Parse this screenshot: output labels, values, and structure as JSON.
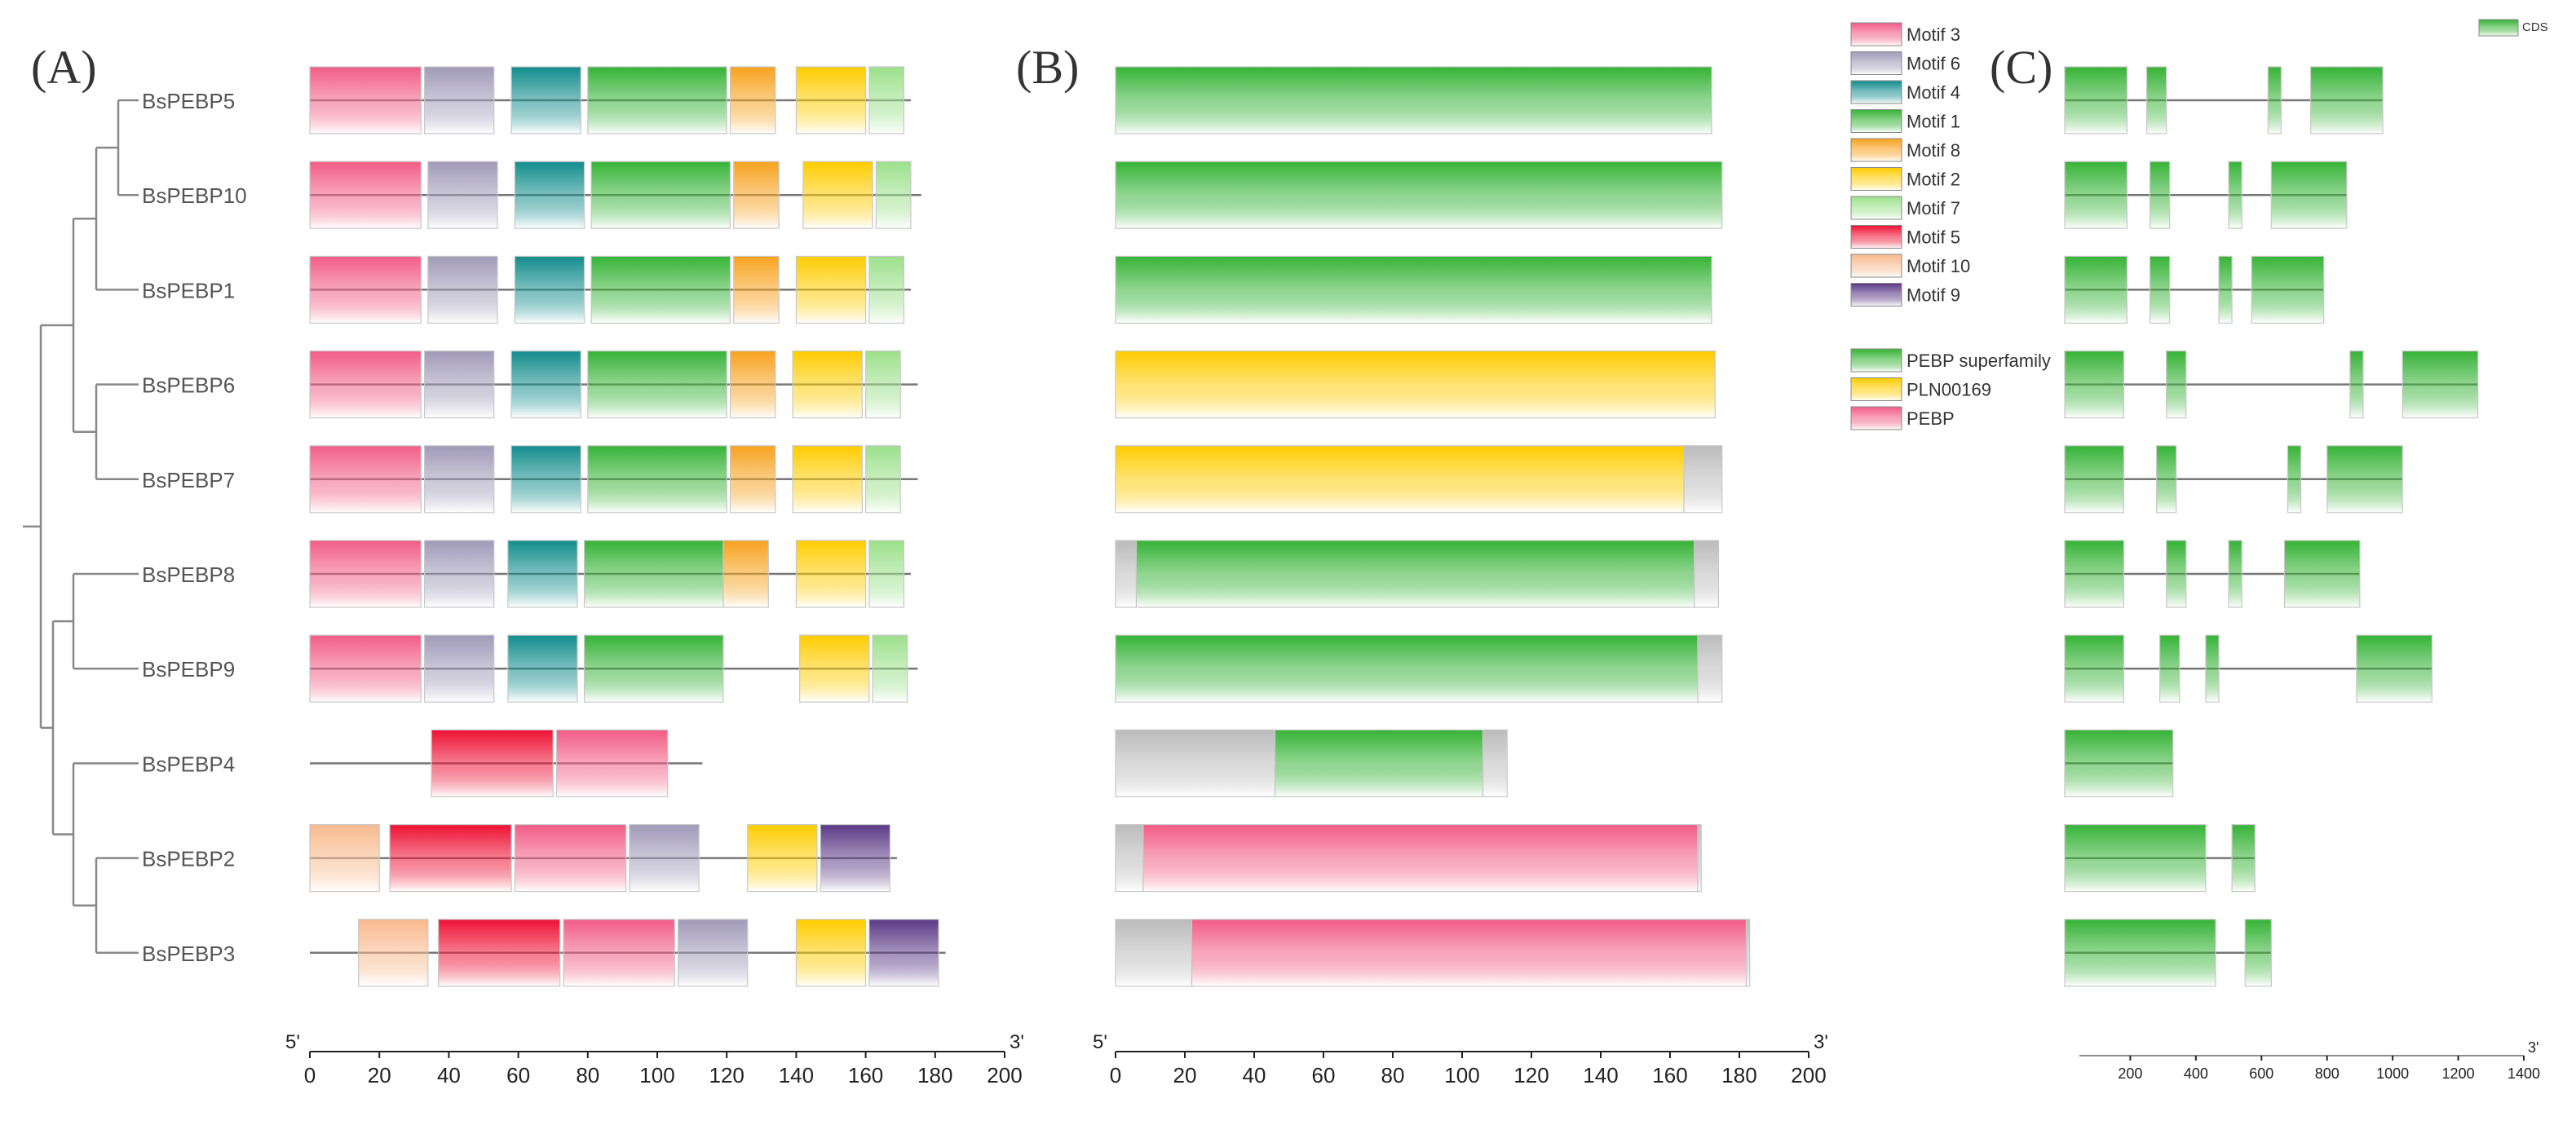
{
  "panels": {
    "a": "(A)",
    "b": "(B)",
    "c": "(C)"
  },
  "colors": {
    "Motif 3": "#f25c86",
    "Motif 6": "#a09ab8",
    "Motif 4": "#128c8c",
    "Motif 1": "#36b336",
    "Motif 8": "#f7a21e",
    "Motif 2": "#ffcc00",
    "Motif 7": "#9be08a",
    "Motif 5": "#ee1133",
    "Motif 10": "#f8b98c",
    "Motif 9": "#5b3a86",
    "PEBP superfamily": "#36b336",
    "PLN00169": "#ffcc00",
    "PEBP": "#f25c86",
    "CDS": "#36b336",
    "none": "#bbbbbb"
  },
  "legend_motifs": [
    "Motif 3",
    "Motif 6",
    "Motif 4",
    "Motif 1",
    "Motif 8",
    "Motif 2",
    "Motif 7",
    "Motif 5",
    "Motif 10",
    "Motif 9"
  ],
  "legend_domains": [
    "PEBP superfamily",
    "PLN00169",
    "PEBP"
  ],
  "legend_cds": "CDS",
  "axis_a": {
    "start_label": "5'",
    "end_label": "3'",
    "min": 0,
    "max": 200,
    "ticks": [
      0,
      20,
      40,
      60,
      80,
      100,
      120,
      140,
      160,
      180,
      200
    ]
  },
  "axis_b": {
    "start_label": "5'",
    "end_label": "3'",
    "min": 0,
    "max": 200,
    "ticks": [
      0,
      20,
      40,
      60,
      80,
      100,
      120,
      140,
      160,
      180,
      200
    ]
  },
  "axis_c": {
    "end_label": "3'",
    "min": 0,
    "max": 1400,
    "ticks": [
      200,
      400,
      600,
      800,
      1000,
      1200,
      1400
    ]
  },
  "genes": [
    {
      "name": "BsPEBP5",
      "length": 173,
      "motifs": [
        [
          "Motif 3",
          0,
          32
        ],
        [
          "Motif 6",
          33,
          53
        ],
        [
          "Motif 4",
          58,
          78
        ],
        [
          "Motif 1",
          80,
          120
        ],
        [
          "Motif 8",
          121,
          134
        ],
        [
          "Motif 2",
          140,
          160
        ],
        [
          "Motif 7",
          161,
          171
        ]
      ],
      "domains": [
        [
          "PEBP superfamily",
          0,
          172
        ]
      ],
      "gene_length": 970,
      "cds": [
        [
          0,
          190
        ],
        [
          250,
          310
        ],
        [
          620,
          660
        ],
        [
          750,
          970
        ]
      ]
    },
    {
      "name": "BsPEBP10",
      "length": 176,
      "motifs": [
        [
          "Motif 3",
          0,
          32
        ],
        [
          "Motif 6",
          34,
          54
        ],
        [
          "Motif 4",
          59,
          79
        ],
        [
          "Motif 1",
          81,
          121
        ],
        [
          "Motif 8",
          122,
          135
        ],
        [
          "Motif 2",
          142,
          162
        ],
        [
          "Motif 7",
          163,
          173
        ]
      ],
      "domains": [
        [
          "PEBP superfamily",
          0,
          175
        ]
      ],
      "gene_length": 860,
      "cds": [
        [
          0,
          190
        ],
        [
          260,
          320
        ],
        [
          500,
          540
        ],
        [
          630,
          860
        ]
      ]
    },
    {
      "name": "BsPEBP1",
      "length": 173,
      "motifs": [
        [
          "Motif 3",
          0,
          32
        ],
        [
          "Motif 6",
          34,
          54
        ],
        [
          "Motif 4",
          59,
          79
        ],
        [
          "Motif 1",
          81,
          121
        ],
        [
          "Motif 8",
          122,
          135
        ],
        [
          "Motif 2",
          140,
          160
        ],
        [
          "Motif 7",
          161,
          171
        ]
      ],
      "domains": [
        [
          "PEBP superfamily",
          0,
          172
        ]
      ],
      "gene_length": 790,
      "cds": [
        [
          0,
          190
        ],
        [
          260,
          320
        ],
        [
          470,
          510
        ],
        [
          570,
          790
        ]
      ]
    },
    {
      "name": "BsPEBP6",
      "length": 175,
      "motifs": [
        [
          "Motif 3",
          0,
          32
        ],
        [
          "Motif 6",
          33,
          53
        ],
        [
          "Motif 4",
          58,
          78
        ],
        [
          "Motif 1",
          80,
          120
        ],
        [
          "Motif 8",
          121,
          134
        ],
        [
          "Motif 2",
          139,
          159
        ],
        [
          "Motif 7",
          160,
          170
        ]
      ],
      "domains": [
        [
          "PLN00169",
          0,
          173
        ]
      ],
      "gene_length": 1260,
      "cds": [
        [
          0,
          180
        ],
        [
          310,
          370
        ],
        [
          870,
          910
        ],
        [
          1030,
          1260
        ]
      ]
    },
    {
      "name": "BsPEBP7",
      "length": 175,
      "motifs": [
        [
          "Motif 3",
          0,
          32
        ],
        [
          "Motif 6",
          33,
          53
        ],
        [
          "Motif 4",
          58,
          78
        ],
        [
          "Motif 1",
          80,
          120
        ],
        [
          "Motif 8",
          121,
          134
        ],
        [
          "Motif 2",
          139,
          159
        ],
        [
          "Motif 7",
          160,
          170
        ]
      ],
      "domains": [
        [
          "PLN00169",
          0,
          164
        ],
        [
          "none",
          164,
          175
        ]
      ],
      "gene_length": 1030,
      "cds": [
        [
          0,
          180
        ],
        [
          280,
          340
        ],
        [
          680,
          720
        ],
        [
          800,
          1030
        ]
      ]
    },
    {
      "name": "BsPEBP8",
      "length": 173,
      "motifs": [
        [
          "Motif 3",
          0,
          32
        ],
        [
          "Motif 6",
          33,
          53
        ],
        [
          "Motif 4",
          57,
          77
        ],
        [
          "Motif 1",
          79,
          119
        ],
        [
          "Motif 8",
          119,
          132
        ],
        [
          "Motif 2",
          140,
          160
        ],
        [
          "Motif 7",
          161,
          171
        ]
      ],
      "domains": [
        [
          "none",
          0,
          6
        ],
        [
          "PEBP superfamily",
          6,
          167
        ],
        [
          "none",
          167,
          174
        ]
      ],
      "gene_length": 900,
      "cds": [
        [
          0,
          180
        ],
        [
          310,
          370
        ],
        [
          500,
          540
        ],
        [
          670,
          900
        ]
      ]
    },
    {
      "name": "BsPEBP9",
      "length": 175,
      "motifs": [
        [
          "Motif 3",
          0,
          32
        ],
        [
          "Motif 6",
          33,
          53
        ],
        [
          "Motif 4",
          57,
          77
        ],
        [
          "Motif 1",
          79,
          119
        ],
        [
          "Motif 2",
          141,
          161
        ],
        [
          "Motif 7",
          162,
          172
        ]
      ],
      "domains": [
        [
          "PEBP superfamily",
          0,
          168
        ],
        [
          "none",
          168,
          175
        ]
      ],
      "gene_length": 1120,
      "cds": [
        [
          0,
          180
        ],
        [
          290,
          350
        ],
        [
          430,
          470
        ],
        [
          890,
          1120
        ]
      ]
    },
    {
      "name": "BsPEBP4",
      "length": 113,
      "motifs": [
        [
          "Motif 5",
          35,
          70
        ],
        [
          "Motif 3",
          71,
          103
        ]
      ],
      "domains": [
        [
          "none",
          0,
          46
        ],
        [
          "PEBP superfamily",
          46,
          106
        ],
        [
          "none",
          106,
          113
        ]
      ],
      "gene_length": 330,
      "cds": [
        [
          0,
          330
        ]
      ]
    },
    {
      "name": "BsPEBP2",
      "length": 169,
      "motifs": [
        [
          "Motif 10",
          0,
          20
        ],
        [
          "Motif 5",
          23,
          58
        ],
        [
          "Motif 3",
          59,
          91
        ],
        [
          "Motif 6",
          92,
          112
        ],
        [
          "Motif 2",
          126,
          146
        ],
        [
          "Motif 9",
          147,
          167
        ]
      ],
      "domains": [
        [
          "none",
          0,
          8
        ],
        [
          "PEBP",
          8,
          168
        ],
        [
          "none",
          168,
          169
        ]
      ],
      "gene_length": 580,
      "cds": [
        [
          0,
          430
        ],
        [
          510,
          580
        ]
      ]
    },
    {
      "name": "BsPEBP3",
      "length": 183,
      "motifs": [
        [
          "Motif 10",
          14,
          34
        ],
        [
          "Motif 5",
          37,
          72
        ],
        [
          "Motif 3",
          73,
          105
        ],
        [
          "Motif 6",
          106,
          126
        ],
        [
          "Motif 2",
          140,
          160
        ],
        [
          "Motif 9",
          161,
          181
        ]
      ],
      "domains": [
        [
          "none",
          0,
          22
        ],
        [
          "PEBP",
          22,
          182
        ],
        [
          "none",
          182,
          183
        ]
      ],
      "gene_length": 630,
      "cds": [
        [
          0,
          460
        ],
        [
          550,
          630
        ]
      ]
    }
  ]
}
